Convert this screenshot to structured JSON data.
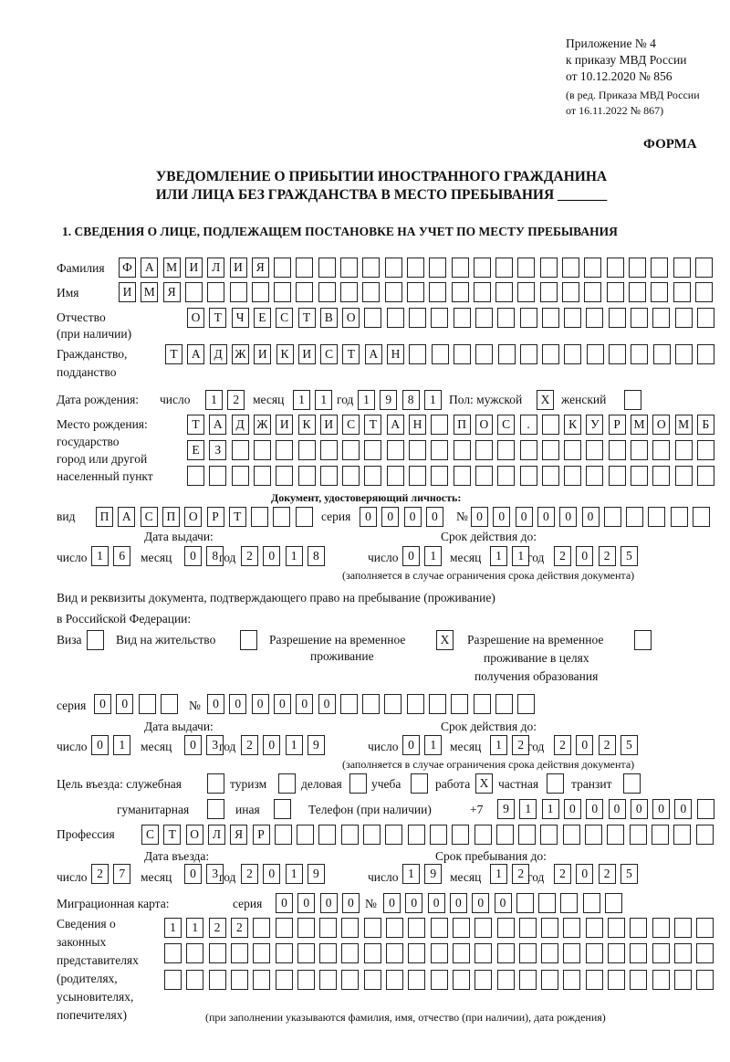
{
  "header": {
    "appendix": "Приложение № 4",
    "order_line": "к приказу МВД России",
    "order_date": "от 10.12.2020 № 856",
    "amend1": "(в ред. Приказа МВД России",
    "amend2": "от 16.11.2022 № 867)",
    "form_label": "ФОРМА"
  },
  "title": {
    "line1": "УВЕДОМЛЕНИЕ О ПРИБЫТИИ ИНОСТРАННОГО ГРАЖДАНИНА",
    "line2": "ИЛИ ЛИЦА БЕЗ ГРАЖДАНСТВА В МЕСТО ПРЕБЫВАНИЯ _______"
  },
  "section1": "1. СВЕДЕНИЯ О ЛИЦЕ, ПОДЛЕЖАЩЕМ ПОСТАНОВКЕ НА УЧЕТ ПО МЕСТУ ПРЕБЫВАНИЯ",
  "labels": {
    "surname": "Фамилия",
    "name": "Имя",
    "patronymic": "Отчество",
    "patronymic2": "(при наличии)",
    "citizenship": "Гражданство,",
    "citizenship2": "подданство",
    "birth_date": "Дата рождения:",
    "day": "число",
    "month": "месяц",
    "year": "год",
    "sex": "Пол: мужской",
    "female": "женский",
    "birth_place": "Место рождения:",
    "bp2": "государство",
    "bp3": "город или другой",
    "bp4": "населенный пункт",
    "id_doc": "Документ, удостоверяющий личность:",
    "kind": "вид",
    "series": "серия",
    "number": "№",
    "issue_date": "Дата выдачи:",
    "valid_until": "Срок действия до:",
    "valid_note": "(заполняется в случае ограничения срока действия документа)",
    "right_doc1": "Вид и реквизиты документа, подтверждающего право на пребывание (проживание)",
    "right_doc2": "в Российской Федерации:",
    "visa": "Виза",
    "residence": "Вид на жительство",
    "trp1": "Разрешение на временное",
    "trp2": "проживание",
    "trpe1": "Разрешение на временное",
    "trpe2": "проживание в целях",
    "trpe3": "получения образования",
    "purpose": "Цель въезда: служебная",
    "tourism": "туризм",
    "business": "деловая",
    "study": "учеба",
    "work": "работа",
    "private": "частная",
    "transit": "транзит",
    "humanitarian": "гуманитарная",
    "other": "иная",
    "phone": "Телефон (при наличии)",
    "phone_prefix": "+7",
    "profession": "Профессия",
    "entry_date": "Дата въезда:",
    "stay_until": "Срок пребывания до:",
    "migration_card": "Миграционная карта:",
    "reps1": "Сведения о",
    "reps2": "законных",
    "reps3": "представителях",
    "reps4": "(родителях,",
    "reps5": "усыновителях,",
    "reps6": "попечителях)",
    "reps_note": "(при заполнении указываются фамилия, имя, отчество (при наличии), дата рождения)"
  },
  "fields": {
    "surname": "ФАМИЛИЯ",
    "name": "ИМЯ",
    "patronymic": "ОТЧЕСТВО",
    "citizenship": "ТАДЖИКИСТАН",
    "birth_day": "12",
    "birth_month": "11",
    "birth_year": "1981",
    "sex_male": "X",
    "sex_female": "",
    "birth_place1": "ТАДЖИКИСТАН ПОС. КУРМОМБ",
    "birth_place2": "ЕЗ",
    "birth_place3": "",
    "doc_kind": "ПАСПОРТ",
    "doc_series": "0000",
    "doc_number": "000000",
    "doc_issue_day": "16",
    "doc_issue_month": "08",
    "doc_issue_year": "2018",
    "doc_exp_day": "01",
    "doc_exp_month": "11",
    "doc_exp_year": "2025",
    "visa": "",
    "residence": "",
    "trp": "X",
    "trpe": "",
    "right_series": "00",
    "right_number": "000000",
    "right_issue_day": "01",
    "right_issue_month": "03",
    "right_issue_year": "2019",
    "right_exp_day": "01",
    "right_exp_month": "12",
    "right_exp_year": "2025",
    "p_service": "",
    "p_tourism": "",
    "p_business": "",
    "p_study": "",
    "p_work": "X",
    "p_private": "",
    "p_transit": "",
    "p_humanitarian": "",
    "p_other": "",
    "phone": "911000000",
    "profession": "СТОЛЯР",
    "entry_day": "27",
    "entry_month": "03",
    "entry_year": "2019",
    "stay_day": "19",
    "stay_month": "12",
    "stay_year": "2025",
    "mc_series": "0000",
    "mc_number": "000000",
    "reps1": "1122",
    "reps2": "",
    "reps3": ""
  }
}
